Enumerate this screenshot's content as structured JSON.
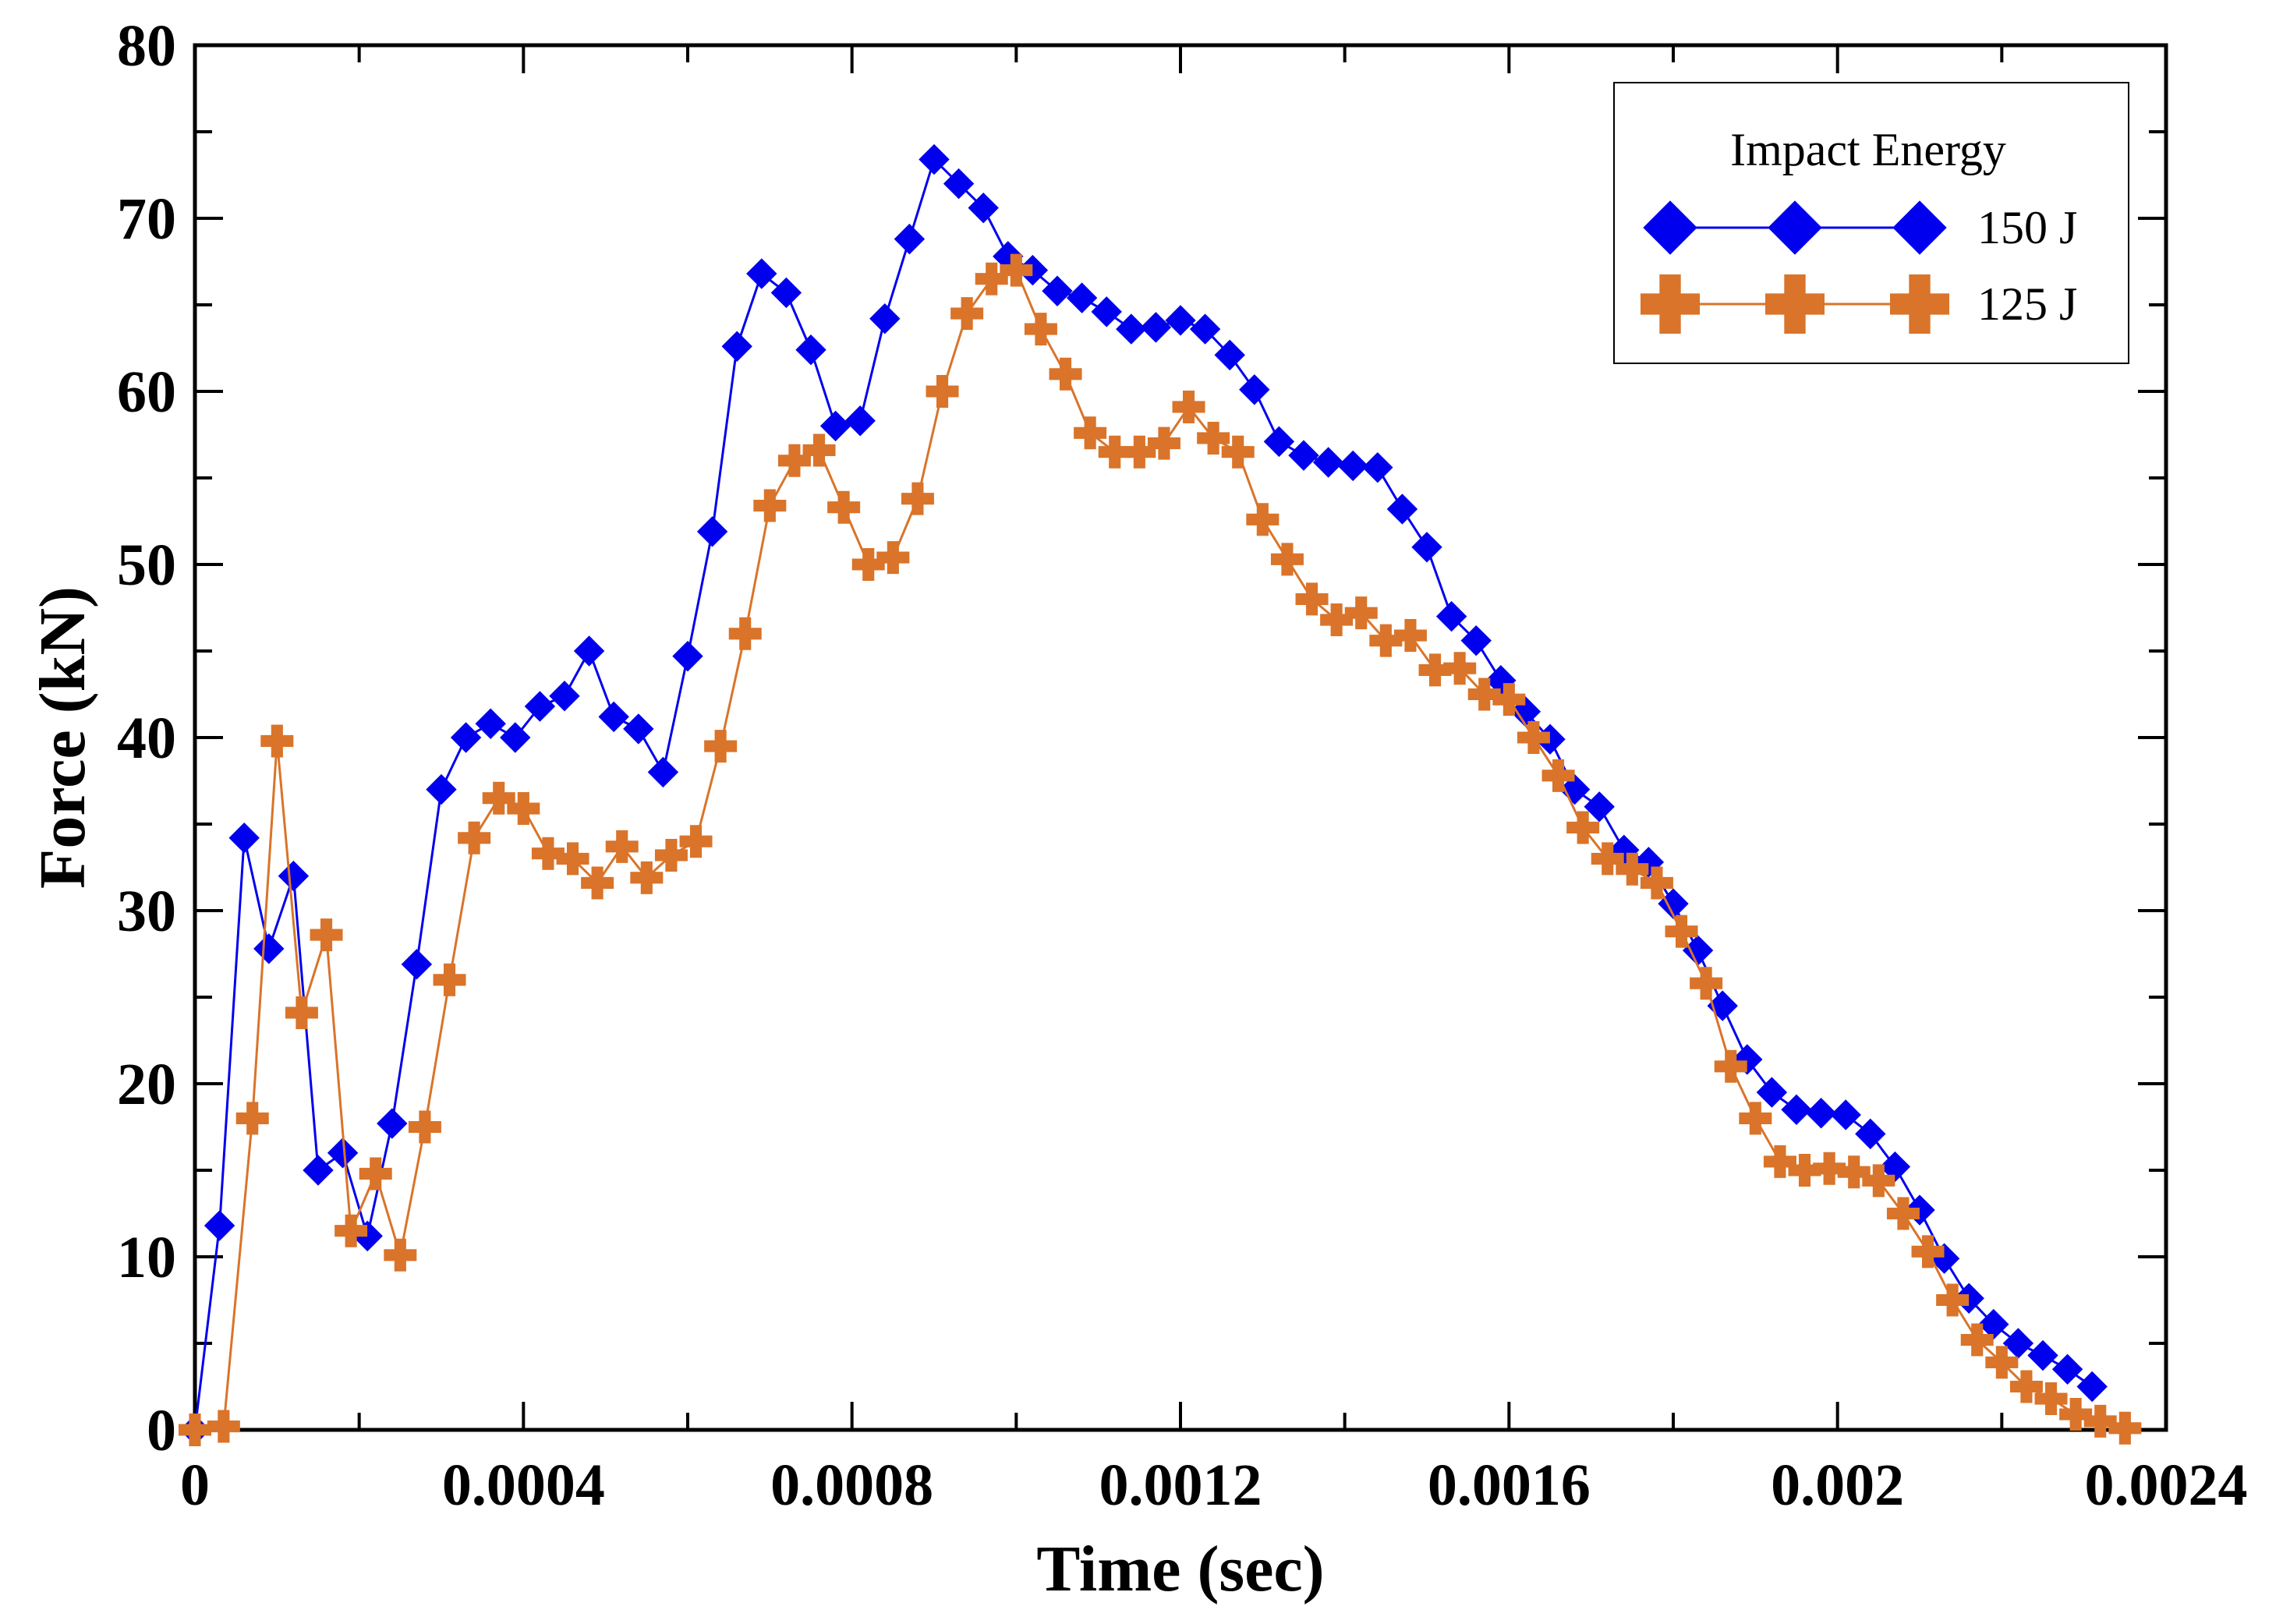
{
  "chart_data": {
    "type": "line",
    "title": "",
    "xlabel": "Time (sec)",
    "ylabel": "Force (kN)",
    "xlim": [
      0,
      0.0024
    ],
    "ylim": [
      0,
      80
    ],
    "x_ticks": [
      0,
      0.0004,
      0.0008,
      0.0012,
      0.0016,
      0.002,
      0.0024
    ],
    "x_tick_labels": [
      "0",
      "0.0004",
      "0.0008",
      "0.0012",
      "0.0016",
      "0.002",
      "0.0024"
    ],
    "y_ticks": [
      0,
      10,
      20,
      30,
      40,
      50,
      60,
      70,
      80
    ],
    "y_tick_labels": [
      "0",
      "10",
      "20",
      "30",
      "40",
      "50",
      "60",
      "70",
      "80"
    ],
    "legend": {
      "title": "Impact Energy",
      "position": "top-right"
    },
    "series": [
      {
        "name": "150 J",
        "color": "#0000ee",
        "marker": "diamond",
        "x": [
          0,
          3e-05,
          6e-05,
          9e-05,
          0.00012,
          0.00015,
          0.00018,
          0.00021,
          0.00024,
          0.00027,
          0.0003,
          0.00033,
          0.00036,
          0.00039,
          0.00042,
          0.00045,
          0.00048,
          0.00051,
          0.00054,
          0.00057,
          0.0006,
          0.00063,
          0.00066,
          0.00069,
          0.00072,
          0.00075,
          0.00078,
          0.00081,
          0.00084,
          0.00087,
          0.0009,
          0.00093,
          0.00096,
          0.00099,
          0.00102,
          0.00105,
          0.00108,
          0.00111,
          0.00114,
          0.00117,
          0.0012,
          0.00123,
          0.00126,
          0.00129,
          0.00132,
          0.00135,
          0.00138,
          0.00141,
          0.00144,
          0.00147,
          0.0015,
          0.00153,
          0.00156,
          0.00159,
          0.00162,
          0.00165,
          0.00168,
          0.00171,
          0.00174,
          0.00177,
          0.0018,
          0.00183,
          0.00186,
          0.00189,
          0.00192,
          0.00195,
          0.00198,
          0.00201,
          0.00204,
          0.00207,
          0.0021,
          0.00213,
          0.00216,
          0.00219,
          0.00222,
          0.00225,
          0.00228,
          0.00231
        ],
        "y": [
          0,
          11.8,
          34.2,
          27.8,
          32.0,
          15.0,
          16.0,
          11.2,
          17.7,
          26.9,
          37.0,
          40.0,
          40.8,
          40.0,
          41.8,
          42.4,
          45.0,
          41.2,
          40.5,
          38.0,
          44.7,
          51.9,
          62.6,
          66.8,
          65.7,
          62.4,
          58.0,
          58.3,
          64.2,
          68.8,
          73.4,
          72.0,
          70.6,
          67.8,
          67.0,
          65.8,
          65.4,
          64.6,
          63.6,
          63.7,
          64.1,
          63.6,
          62.1,
          60.1,
          57.1,
          56.3,
          55.9,
          55.7,
          55.6,
          53.2,
          51.0,
          47.0,
          45.6,
          43.3,
          41.5,
          39.9,
          37.0,
          36.0,
          33.5,
          32.8,
          30.4,
          27.7,
          24.5,
          21.4,
          19.5,
          18.5,
          18.3,
          18.2,
          17.1,
          15.2,
          12.7,
          9.9,
          7.6,
          6.1,
          5.0,
          4.3,
          3.5,
          2.5
        ]
      },
      {
        "name": "125 J",
        "color": "#d9742a",
        "marker": "plus",
        "x": [
          0,
          3.5e-05,
          7e-05,
          0.0001,
          0.00013,
          0.00016,
          0.00019,
          0.00022,
          0.00025,
          0.00028,
          0.00031,
          0.00034,
          0.00037,
          0.0004,
          0.00043,
          0.00046,
          0.00049,
          0.00052,
          0.00055,
          0.00058,
          0.00061,
          0.00064,
          0.00067,
          0.0007,
          0.00073,
          0.00076,
          0.00079,
          0.00082,
          0.00085,
          0.00088,
          0.00091,
          0.00094,
          0.00097,
          0.001,
          0.00103,
          0.00106,
          0.00109,
          0.00112,
          0.00115,
          0.00118,
          0.00121,
          0.00124,
          0.00127,
          0.0013,
          0.00133,
          0.00136,
          0.00139,
          0.00142,
          0.00145,
          0.00148,
          0.00151,
          0.00154,
          0.00157,
          0.0016,
          0.00163,
          0.00166,
          0.00169,
          0.00172,
          0.00175,
          0.00178,
          0.00181,
          0.00184,
          0.00187,
          0.0019,
          0.00193,
          0.00196,
          0.00199,
          0.00202,
          0.00205,
          0.00208,
          0.00211,
          0.00214,
          0.00217,
          0.0022,
          0.00223,
          0.00226,
          0.00229,
          0.00232,
          0.00235
        ],
        "y": [
          0,
          0.2,
          18.0,
          39.8,
          24.1,
          28.6,
          11.5,
          14.8,
          10.1,
          17.5,
          26.0,
          34.2,
          36.5,
          35.9,
          33.3,
          33.0,
          31.6,
          33.7,
          31.9,
          33.2,
          34.0,
          39.5,
          46.0,
          53.4,
          56.0,
          56.6,
          53.3,
          50.0,
          50.4,
          53.8,
          60.0,
          64.5,
          66.5,
          67.0,
          63.6,
          61.0,
          57.6,
          56.5,
          56.5,
          57.0,
          59.1,
          57.3,
          56.5,
          52.6,
          50.3,
          48.0,
          46.8,
          47.2,
          45.6,
          45.9,
          43.9,
          44.0,
          42.5,
          42.2,
          40.0,
          37.8,
          34.8,
          33.0,
          32.4,
          31.6,
          28.8,
          25.8,
          21.0,
          18.0,
          15.5,
          15.0,
          15.1,
          14.9,
          14.4,
          12.5,
          10.3,
          7.5,
          5.2,
          3.9,
          2.5,
          1.8,
          0.9,
          0.5,
          0.1
        ]
      }
    ]
  }
}
